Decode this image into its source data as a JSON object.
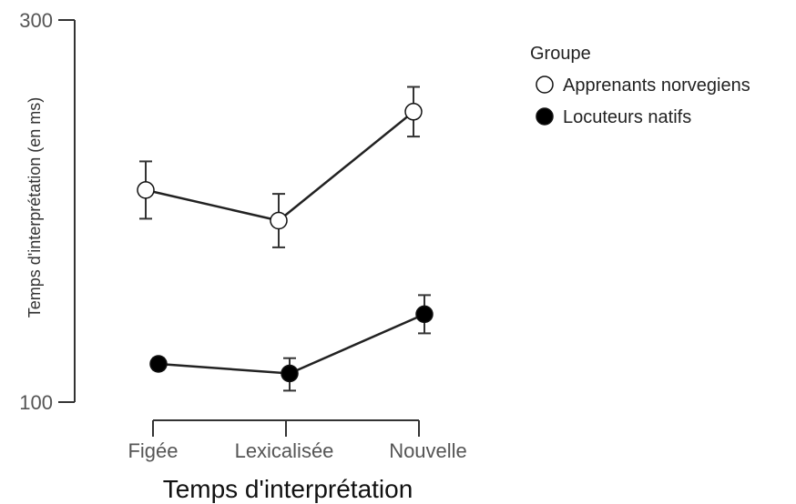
{
  "chart_data": {
    "type": "line",
    "title": "",
    "xlabel": "Temps d'interprétation",
    "ylabel": "Temps d'interprétation (en ms)",
    "categories": [
      "Figée",
      "Lexicalisée",
      "Nouvelle"
    ],
    "ylim": [
      100,
      300
    ],
    "yticks": [
      "100",
      "300"
    ],
    "grid": false,
    "legend": {
      "title": "Groupe",
      "placement": "top-right"
    },
    "series": [
      {
        "name": "Apprenants norvegiens",
        "marker": "open-circle",
        "color": "#222222",
        "values": [
          211,
          195,
          252
        ],
        "err_low": [
          196,
          181,
          239
        ],
        "err_high": [
          226,
          209,
          265
        ]
      },
      {
        "name": "Locuteurs natifs",
        "marker": "filled-circle",
        "color": "#000000",
        "values": [
          120,
          115,
          146
        ],
        "err_low": [
          117,
          106,
          136
        ],
        "err_high": [
          123,
          123,
          156
        ]
      }
    ]
  }
}
